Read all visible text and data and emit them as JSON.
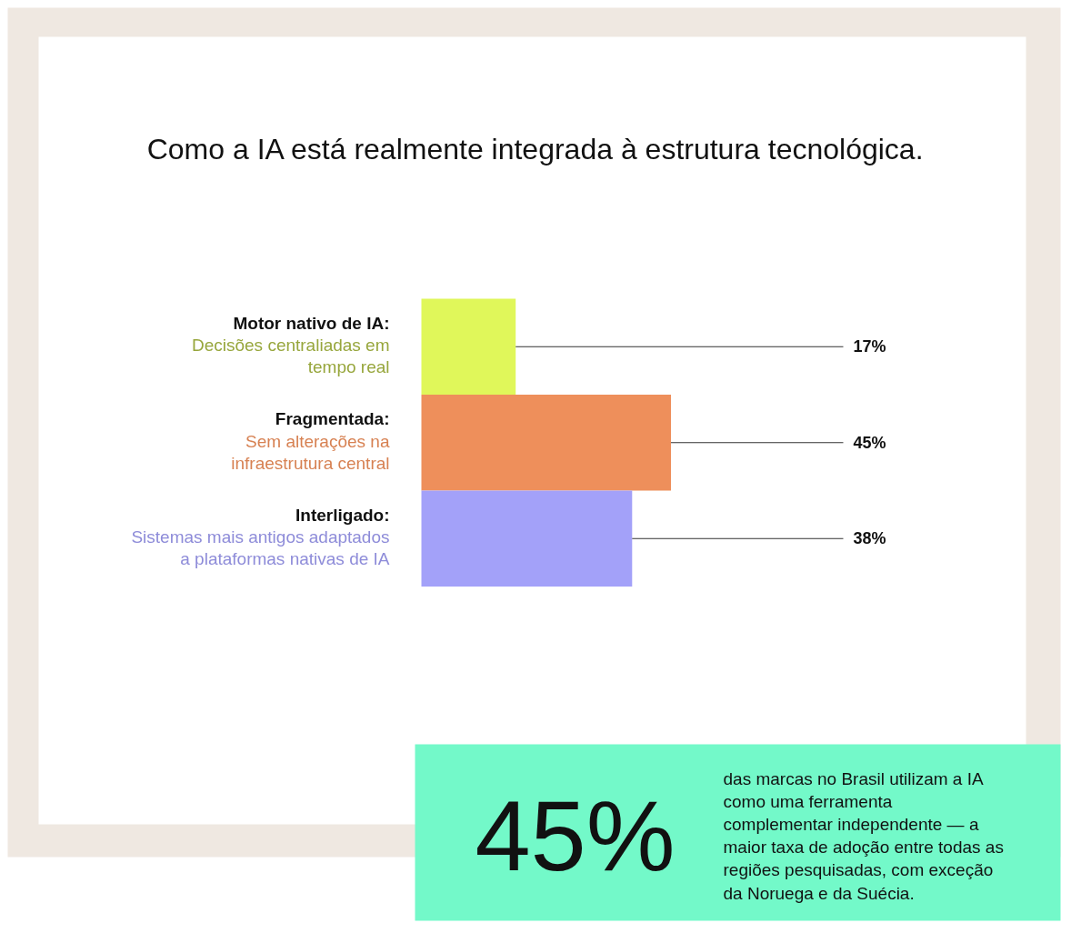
{
  "chart_data": {
    "type": "bar",
    "title": "Como a IA está realmente integrada à estrutura tecnológica.",
    "categories": [
      "Motor nativo de IA:\nDecisões centraliadas em\ntempo real",
      "Fragmentada:\nSem alterações na\ninfraestrutura central",
      "Interligado:\nSistemas mais antigos adaptados\na plataformas nativas de IA"
    ],
    "values": [
      17,
      45,
      38
    ],
    "colors": [
      "#e0f75a",
      "#ee8f5b",
      "#a3a1f9"
    ],
    "value_labels": [
      "17%",
      "45%",
      "38%"
    ],
    "annotations": [
      "45%",
      "das marcas no Brasil utilizam a IA\ncomo uma ferramenta\ncomplementar independente — a\nmaior taxa de adoção entre todas as\nregiões pesquisadas, com exceção\nda Noruega e da Suécia."
    ],
    "orientation": "horizontal"
  }
}
